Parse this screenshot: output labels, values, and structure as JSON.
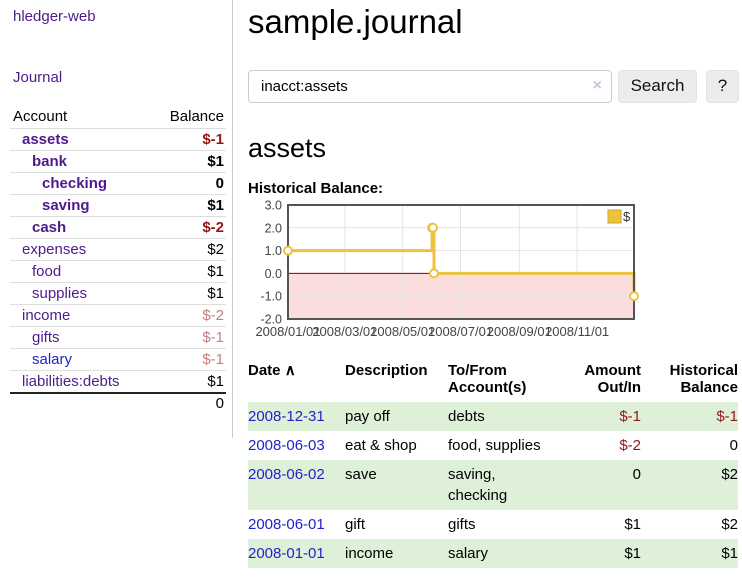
{
  "app": {
    "title": "hledger-web",
    "journal_label": "Journal"
  },
  "colors": {
    "link_purple": "#4e1a8c",
    "link_blue": "#2222cc",
    "negative_strong": "#941717",
    "negative_muted": "#c57f7f",
    "row_stripe_green": "#dff0d8",
    "chart_line": "#edc240",
    "chart_negative_fill": "#fbdddd",
    "chart_zero_line": "#8b0000",
    "chart_border": "#545454"
  },
  "sidebar": {
    "header": {
      "account": "Account",
      "balance": "Balance"
    },
    "accounts": [
      {
        "name": "assets",
        "indent": 1,
        "bold": true,
        "balance": "$-1",
        "negative": "strong",
        "link_color": "purple"
      },
      {
        "name": "bank",
        "indent": 2,
        "bold": true,
        "balance": "$1",
        "negative": null,
        "link_color": "purple"
      },
      {
        "name": "checking",
        "indent": 3,
        "bold": true,
        "balance": "0",
        "negative": null,
        "link_color": "purple"
      },
      {
        "name": "saving",
        "indent": 3,
        "bold": true,
        "balance": "$1",
        "negative": null,
        "link_color": "purple"
      },
      {
        "name": "cash",
        "indent": 2,
        "bold": true,
        "balance": "$-2",
        "negative": "strong",
        "link_color": "purple"
      },
      {
        "name": "expenses",
        "indent": 1,
        "bold": false,
        "balance": "$2",
        "negative": null,
        "link_color": "purple"
      },
      {
        "name": "food",
        "indent": 2,
        "bold": false,
        "balance": "$1",
        "negative": null,
        "link_color": "purple"
      },
      {
        "name": "supplies",
        "indent": 2,
        "bold": false,
        "balance": "$1",
        "negative": null,
        "link_color": "purple"
      },
      {
        "name": "income",
        "indent": 1,
        "bold": false,
        "balance": "$-2",
        "negative": "muted",
        "link_color": "purple"
      },
      {
        "name": "gifts",
        "indent": 2,
        "bold": false,
        "balance": "$-1",
        "negative": "muted",
        "link_color": "purple"
      },
      {
        "name": "salary",
        "indent": 2,
        "bold": false,
        "balance": "$-1",
        "negative": "muted",
        "link_color": "blue"
      },
      {
        "name": "liabilities:debts",
        "indent": 1,
        "bold": false,
        "balance": "$1",
        "negative": null,
        "link_color": "purple"
      }
    ],
    "total": "0"
  },
  "main": {
    "title": "sample.journal",
    "search": {
      "value": "inacct:assets",
      "clear_icon": "×",
      "button_label": "Search",
      "help_label": "?"
    },
    "account_heading": "assets",
    "chart_label": "Historical Balance:"
  },
  "chart_data": {
    "type": "line",
    "style": "step",
    "title": "Historical Balance:",
    "series": [
      {
        "name": "$",
        "color": "#edc240",
        "points": [
          [
            "2008-01-01",
            1
          ],
          [
            "2008-06-01",
            2
          ],
          [
            "2008-06-02",
            2
          ],
          [
            "2008-06-03",
            0
          ],
          [
            "2008-12-31",
            -1
          ]
        ]
      }
    ],
    "x_range": [
      "2008-01-01",
      "2008-12-31"
    ],
    "ylim": [
      -2,
      3
    ],
    "yticks": [
      3,
      2,
      1,
      0,
      -1,
      -2
    ],
    "ytick_labels": [
      "3.0",
      "2.0",
      "1.0",
      "0.0",
      "-1.0",
      "-2.0"
    ],
    "xticks": [
      "2008-01-01",
      "2008-03-01",
      "2008-05-01",
      "2008-07-01",
      "2008-09-01",
      "2008-11-01"
    ],
    "xtick_labels": [
      "2008/01/01",
      "2008/03/01",
      "2008/05/01",
      "2008/07/01",
      "2008/09/01",
      "2008/11/01"
    ],
    "legend": {
      "label": "$",
      "position": "top-right"
    },
    "grid": true,
    "negative_region_fill": "#fbdddd",
    "zero_line_color": "#8b0000"
  },
  "register": {
    "headers": {
      "date": "Date",
      "sort_icon": "∧",
      "description": "Description",
      "accounts": "To/From Account(s)",
      "amount": "Amount Out/In",
      "balance": "Historical Balance"
    },
    "rows": [
      {
        "date": "2008-12-31",
        "description": "pay off",
        "accounts": "debts",
        "amount": "$-1",
        "balance": "$-1"
      },
      {
        "date": "2008-06-03",
        "description": "eat & shop",
        "accounts": "food, supplies",
        "amount": "$-2",
        "balance": "0"
      },
      {
        "date": "2008-06-02",
        "description": "save",
        "accounts": "saving, checking",
        "amount": "0",
        "balance": "$2"
      },
      {
        "date": "2008-06-01",
        "description": "gift",
        "accounts": "gifts",
        "amount": "$1",
        "balance": "$2"
      },
      {
        "date": "2008-01-01",
        "description": "income",
        "accounts": "salary",
        "amount": "$1",
        "balance": "$1"
      }
    ]
  }
}
